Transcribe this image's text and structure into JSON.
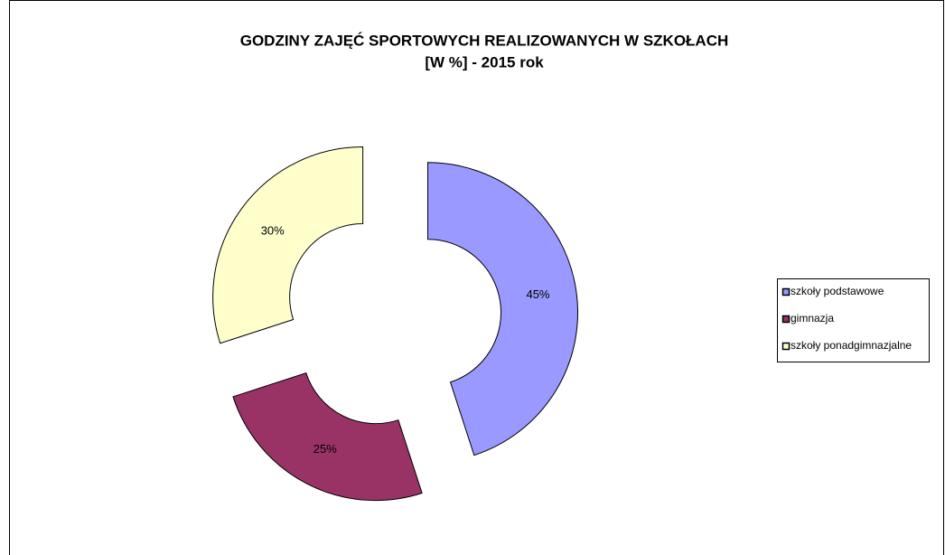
{
  "chart_data": {
    "type": "donut",
    "title": "GODZINY ZAJĘĆ SPORTOWYCH REALIZOWANYCH W SZKOŁACH",
    "subtitle": "[W %] - 2015 rok",
    "categories": [
      "szkoły podstawowe",
      "gimnazja",
      "szkoły ponadgimnazjalne"
    ],
    "values": [
      45,
      25,
      30
    ],
    "value_labels": [
      "45%",
      "25%",
      "30%"
    ],
    "colors": [
      "#9999ff",
      "#993366",
      "#ffffcc"
    ],
    "legend": "right"
  }
}
